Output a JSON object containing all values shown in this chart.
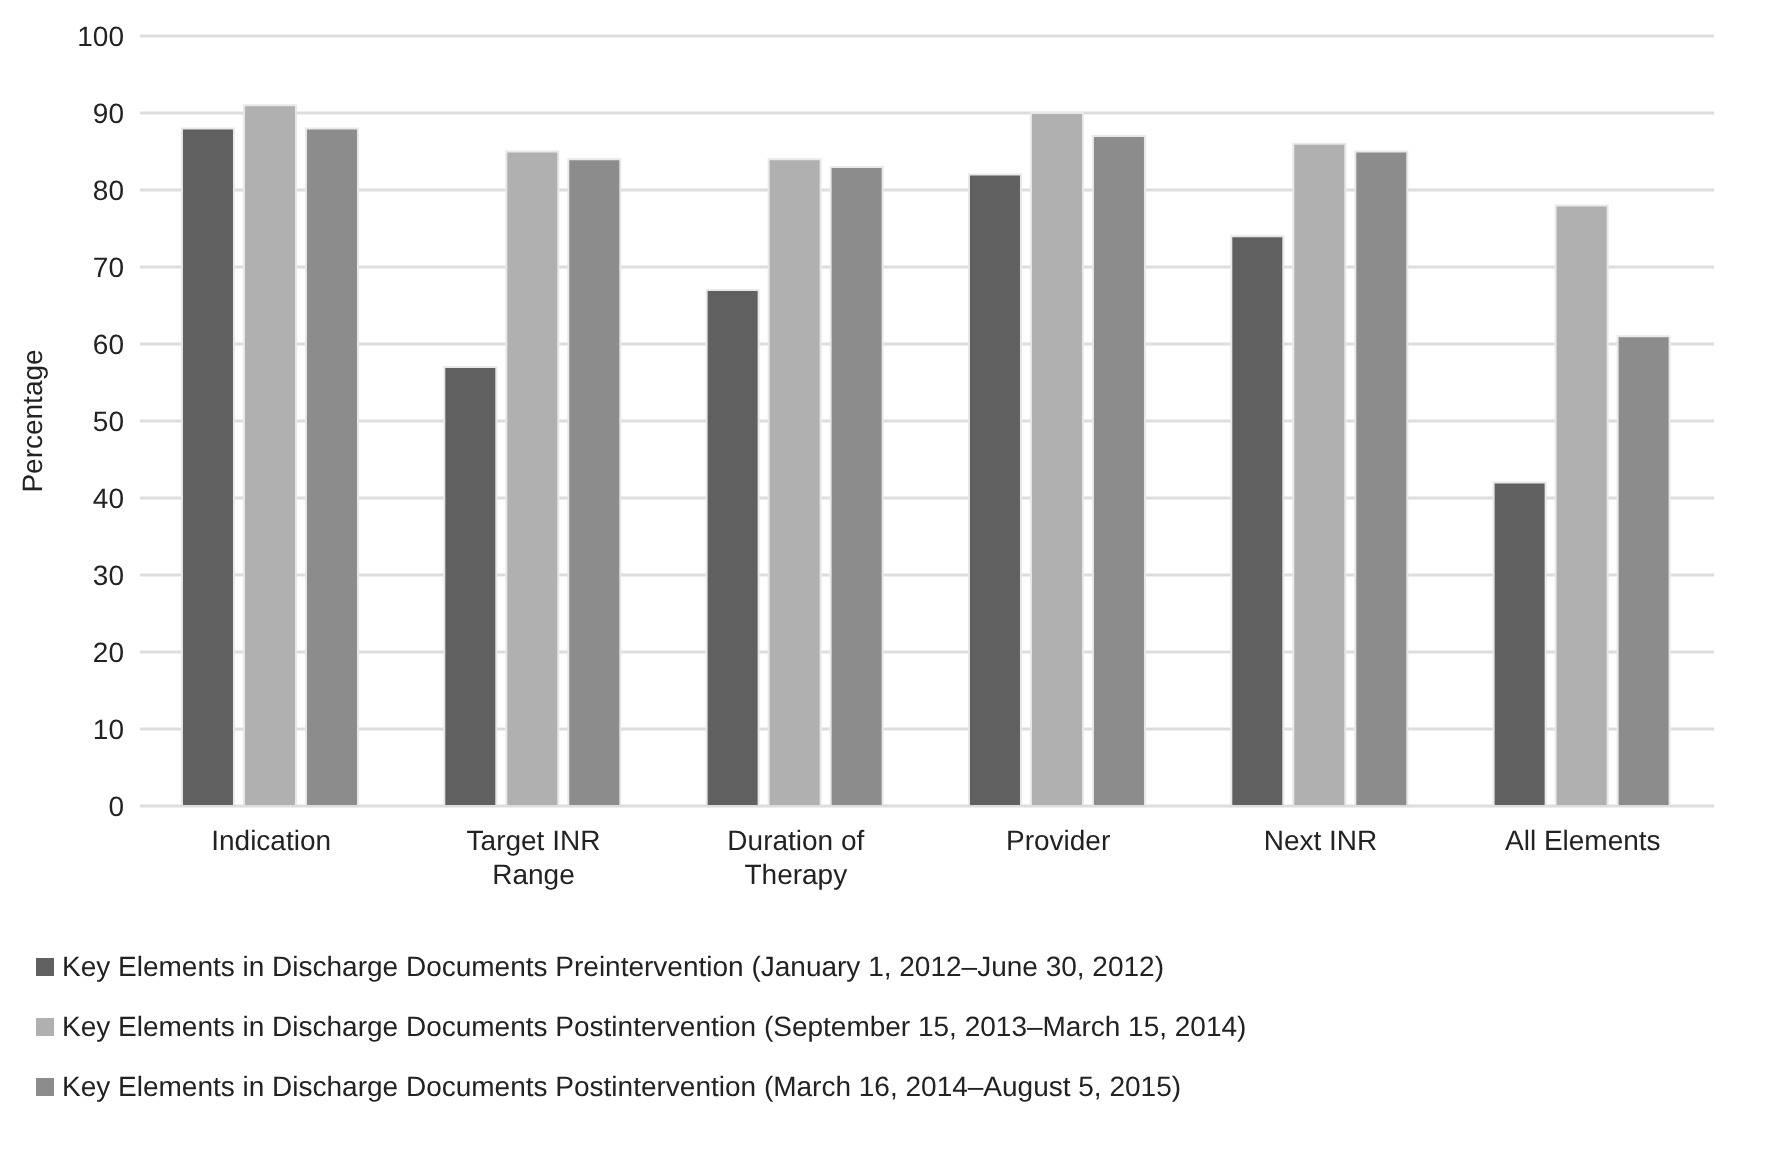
{
  "chart_data": {
    "type": "bar",
    "ylabel": "Percentage",
    "categories": [
      "Indication",
      "Target INR Range",
      "Duration of Therapy",
      "Provider",
      "Next INR",
      "All Elements"
    ],
    "series": [
      {
        "name": "Key Elements in Discharge Documents Preintervention (January 1, 2012–June 30, 2012)",
        "color": "#5f605f",
        "values": [
          88,
          57,
          67,
          82,
          74,
          42
        ]
      },
      {
        "name": "Key Elements in Discharge Documents Postintervention (September 15, 2013–March 15, 2014)",
        "color": "#b0b0b0",
        "values": [
          91,
          85,
          84,
          90,
          86,
          78
        ]
      },
      {
        "name": "Key Elements in Discharge Documents Postintervention (March 16, 2014–August 5, 2015)",
        "color": "#8c8c8c",
        "values": [
          88,
          84,
          83,
          87,
          85,
          61
        ]
      }
    ],
    "ylim": [
      0,
      100
    ],
    "yticks": [
      0,
      10,
      20,
      30,
      40,
      50,
      60,
      70,
      80,
      90,
      100
    ],
    "grid": "y",
    "legend": "bottom"
  }
}
